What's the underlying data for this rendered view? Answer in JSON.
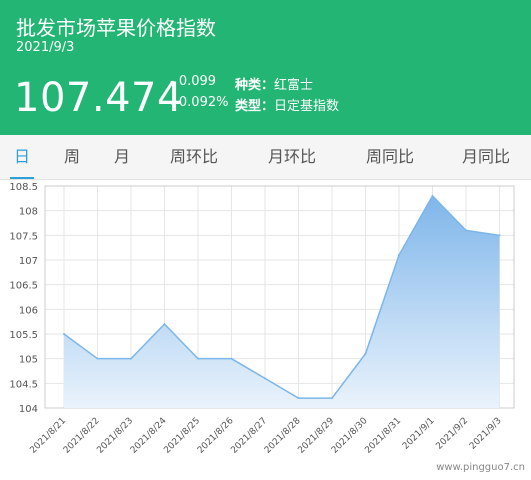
{
  "header": {
    "title": "批发市场苹果价格指数",
    "date": "2021/9/3",
    "price": "107.474",
    "change": "- 0.099",
    "change_pct": "↓0.092%",
    "variety_label": "种类：",
    "variety_value": "红富士",
    "type_label": "类型：",
    "type_value": "日定基指数",
    "bg_color": "#22b573"
  },
  "tabs": [
    {
      "label": "日",
      "active": true
    },
    {
      "label": "周",
      "active": false
    },
    {
      "label": "月",
      "active": false
    },
    {
      "label": "周环比",
      "active": false
    },
    {
      "label": "月环比",
      "active": false
    },
    {
      "label": "周同比",
      "active": false
    },
    {
      "label": "月同比",
      "active": false
    }
  ],
  "footer": {
    "watermark": "www.pingguo7.cn"
  },
  "chart_data": {
    "type": "area",
    "categories": [
      "2021/8/21",
      "2021/8/22",
      "2021/8/23",
      "2021/8/24",
      "2021/8/25",
      "2021/8/26",
      "2021/8/27",
      "2021/8/28",
      "2021/8/29",
      "2021/8/30",
      "2021/8/31",
      "2021/9/1",
      "2021/9/2",
      "2021/9/3"
    ],
    "values": [
      105.5,
      105.0,
      105.0,
      105.7,
      105.0,
      105.0,
      104.6,
      104.2,
      104.2,
      105.1,
      107.1,
      108.3,
      107.6,
      107.5
    ],
    "yticks": [
      "104",
      "104.5",
      "105",
      "105.5",
      "106",
      "106.5",
      "107",
      "107.5",
      "108",
      "108.5"
    ],
    "ylim": [
      104,
      108.5
    ],
    "grid": true,
    "line_color": "#7db6e8",
    "fill_top": "#7fb6ea",
    "fill_bottom": "#eaf3fc"
  }
}
